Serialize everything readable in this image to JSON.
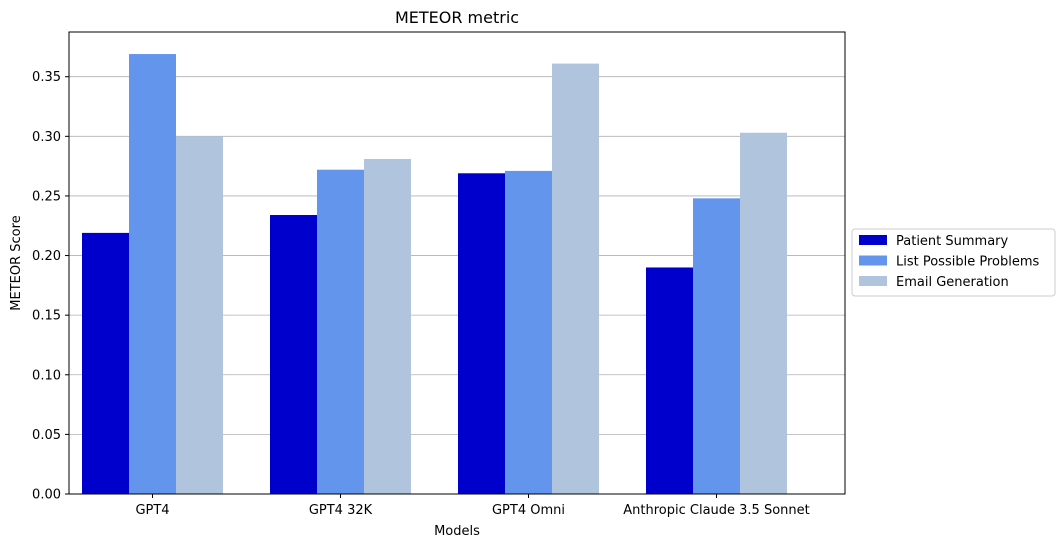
{
  "chart_data": {
    "type": "bar",
    "title": "METEOR metric",
    "xlabel": "Models",
    "ylabel": "METEOR Score",
    "categories": [
      "GPT4",
      "GPT4 32K",
      "GPT4 Omni",
      "Anthropic Claude 3.5 Sonnet"
    ],
    "series": [
      {
        "name": "Patient Summary",
        "color": "#0000cd",
        "values": [
          0.219,
          0.234,
          0.269,
          0.19
        ]
      },
      {
        "name": "List Possible Problems",
        "color": "#6495ed",
        "values": [
          0.369,
          0.272,
          0.271,
          0.248
        ]
      },
      {
        "name": "Email Generation",
        "color": "#b0c4de",
        "values": [
          0.3,
          0.281,
          0.361,
          0.303
        ]
      }
    ],
    "ylim": [
      0,
      0.3875
    ],
    "yticks": [
      0.0,
      0.05,
      0.1,
      0.15,
      0.2,
      0.25,
      0.3,
      0.35
    ],
    "ytick_labels": [
      "0.00",
      "0.05",
      "0.10",
      "0.15",
      "0.20",
      "0.25",
      "0.30",
      "0.35"
    ],
    "grid": "y",
    "legend_position": "outside-right"
  }
}
